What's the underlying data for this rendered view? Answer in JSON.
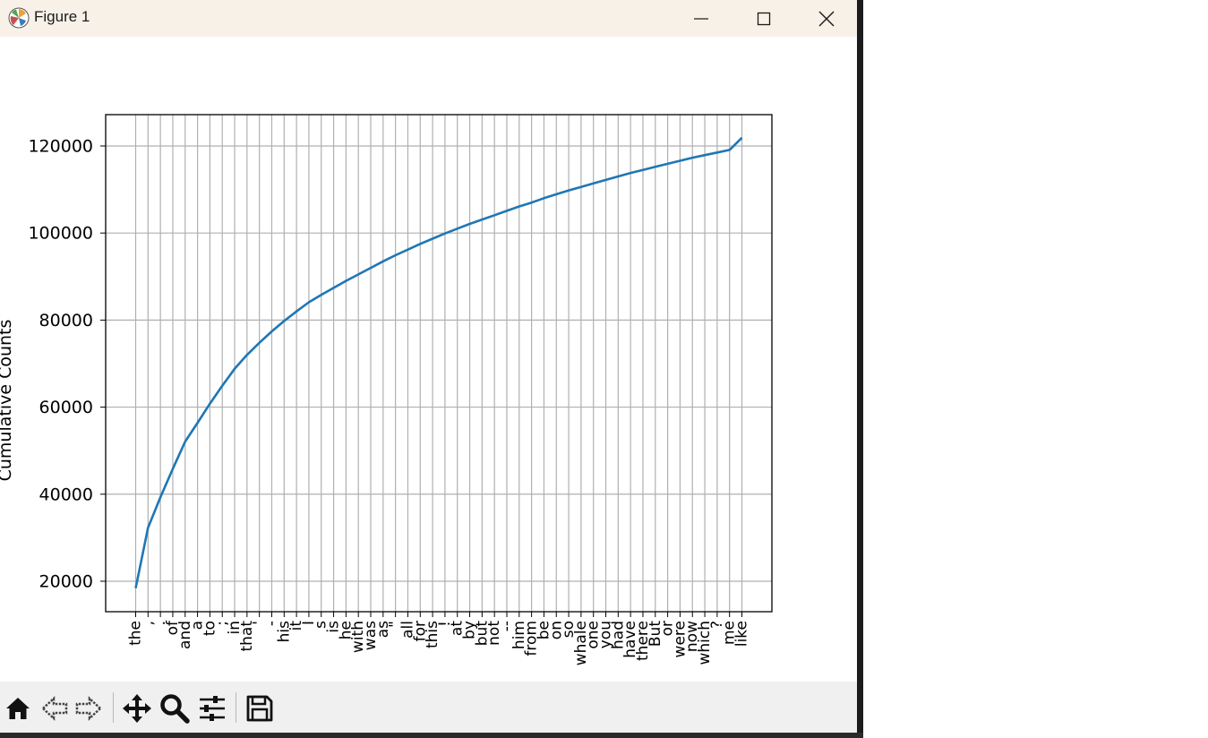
{
  "window": {
    "title": "Figure 1",
    "controls": [
      "minimize",
      "maximize",
      "close"
    ]
  },
  "toolbar": {
    "tools": [
      {
        "name": "home-icon",
        "tooltip": "Reset original view"
      },
      {
        "name": "back-icon",
        "tooltip": "Back to previous view"
      },
      {
        "name": "forward-icon",
        "tooltip": "Forward to next view"
      },
      {
        "name": "pan-icon",
        "tooltip": "Pan axes"
      },
      {
        "name": "zoom-icon",
        "tooltip": "Zoom to rectangle"
      },
      {
        "name": "configure-subplots-icon",
        "tooltip": "Configure subplots"
      },
      {
        "name": "save-icon",
        "tooltip": "Save the figure"
      }
    ]
  },
  "chart_data": {
    "type": "line",
    "title": "",
    "xlabel": "",
    "ylabel": "Cumulative Counts",
    "x": [
      "the",
      ",",
      ".",
      "of",
      "and",
      "a",
      "to",
      ";",
      "in",
      "that",
      "'",
      "-",
      "his",
      "it",
      "I",
      "s",
      "is",
      "he",
      "with",
      "was",
      "as",
      "\"",
      "all",
      "for",
      "this",
      "!",
      "at",
      "by",
      "but",
      "not",
      "--",
      "him",
      "from",
      "be",
      "on",
      "so",
      "whale",
      "one",
      "you",
      "had",
      "have",
      "there",
      "But",
      "or",
      "were",
      "now",
      "which",
      "?",
      "me",
      "like"
    ],
    "series": [
      {
        "values": [
          18400,
          32300,
          39300,
          45800,
          52100,
          56400,
          60800,
          64900,
          68800,
          72000,
          74800,
          77400,
          79800,
          82000,
          84100,
          85800,
          87400,
          89000,
          90500,
          92000,
          93500,
          94900,
          96200,
          97500,
          98700,
          99900,
          101000,
          102100,
          103100,
          104100,
          105100,
          106100,
          107000,
          108000,
          108900,
          109800,
          110600,
          111400,
          112200,
          113000,
          113800,
          114500,
          115200,
          115900,
          116600,
          117300,
          117900,
          118500,
          119100,
          121900
        ],
        "color": "#1f77b4"
      }
    ],
    "yticks": [
      20000,
      40000,
      60000,
      80000,
      100000,
      120000
    ],
    "ylim": [
      13000,
      127200
    ],
    "grid": true,
    "xtick_rotation": 90
  }
}
